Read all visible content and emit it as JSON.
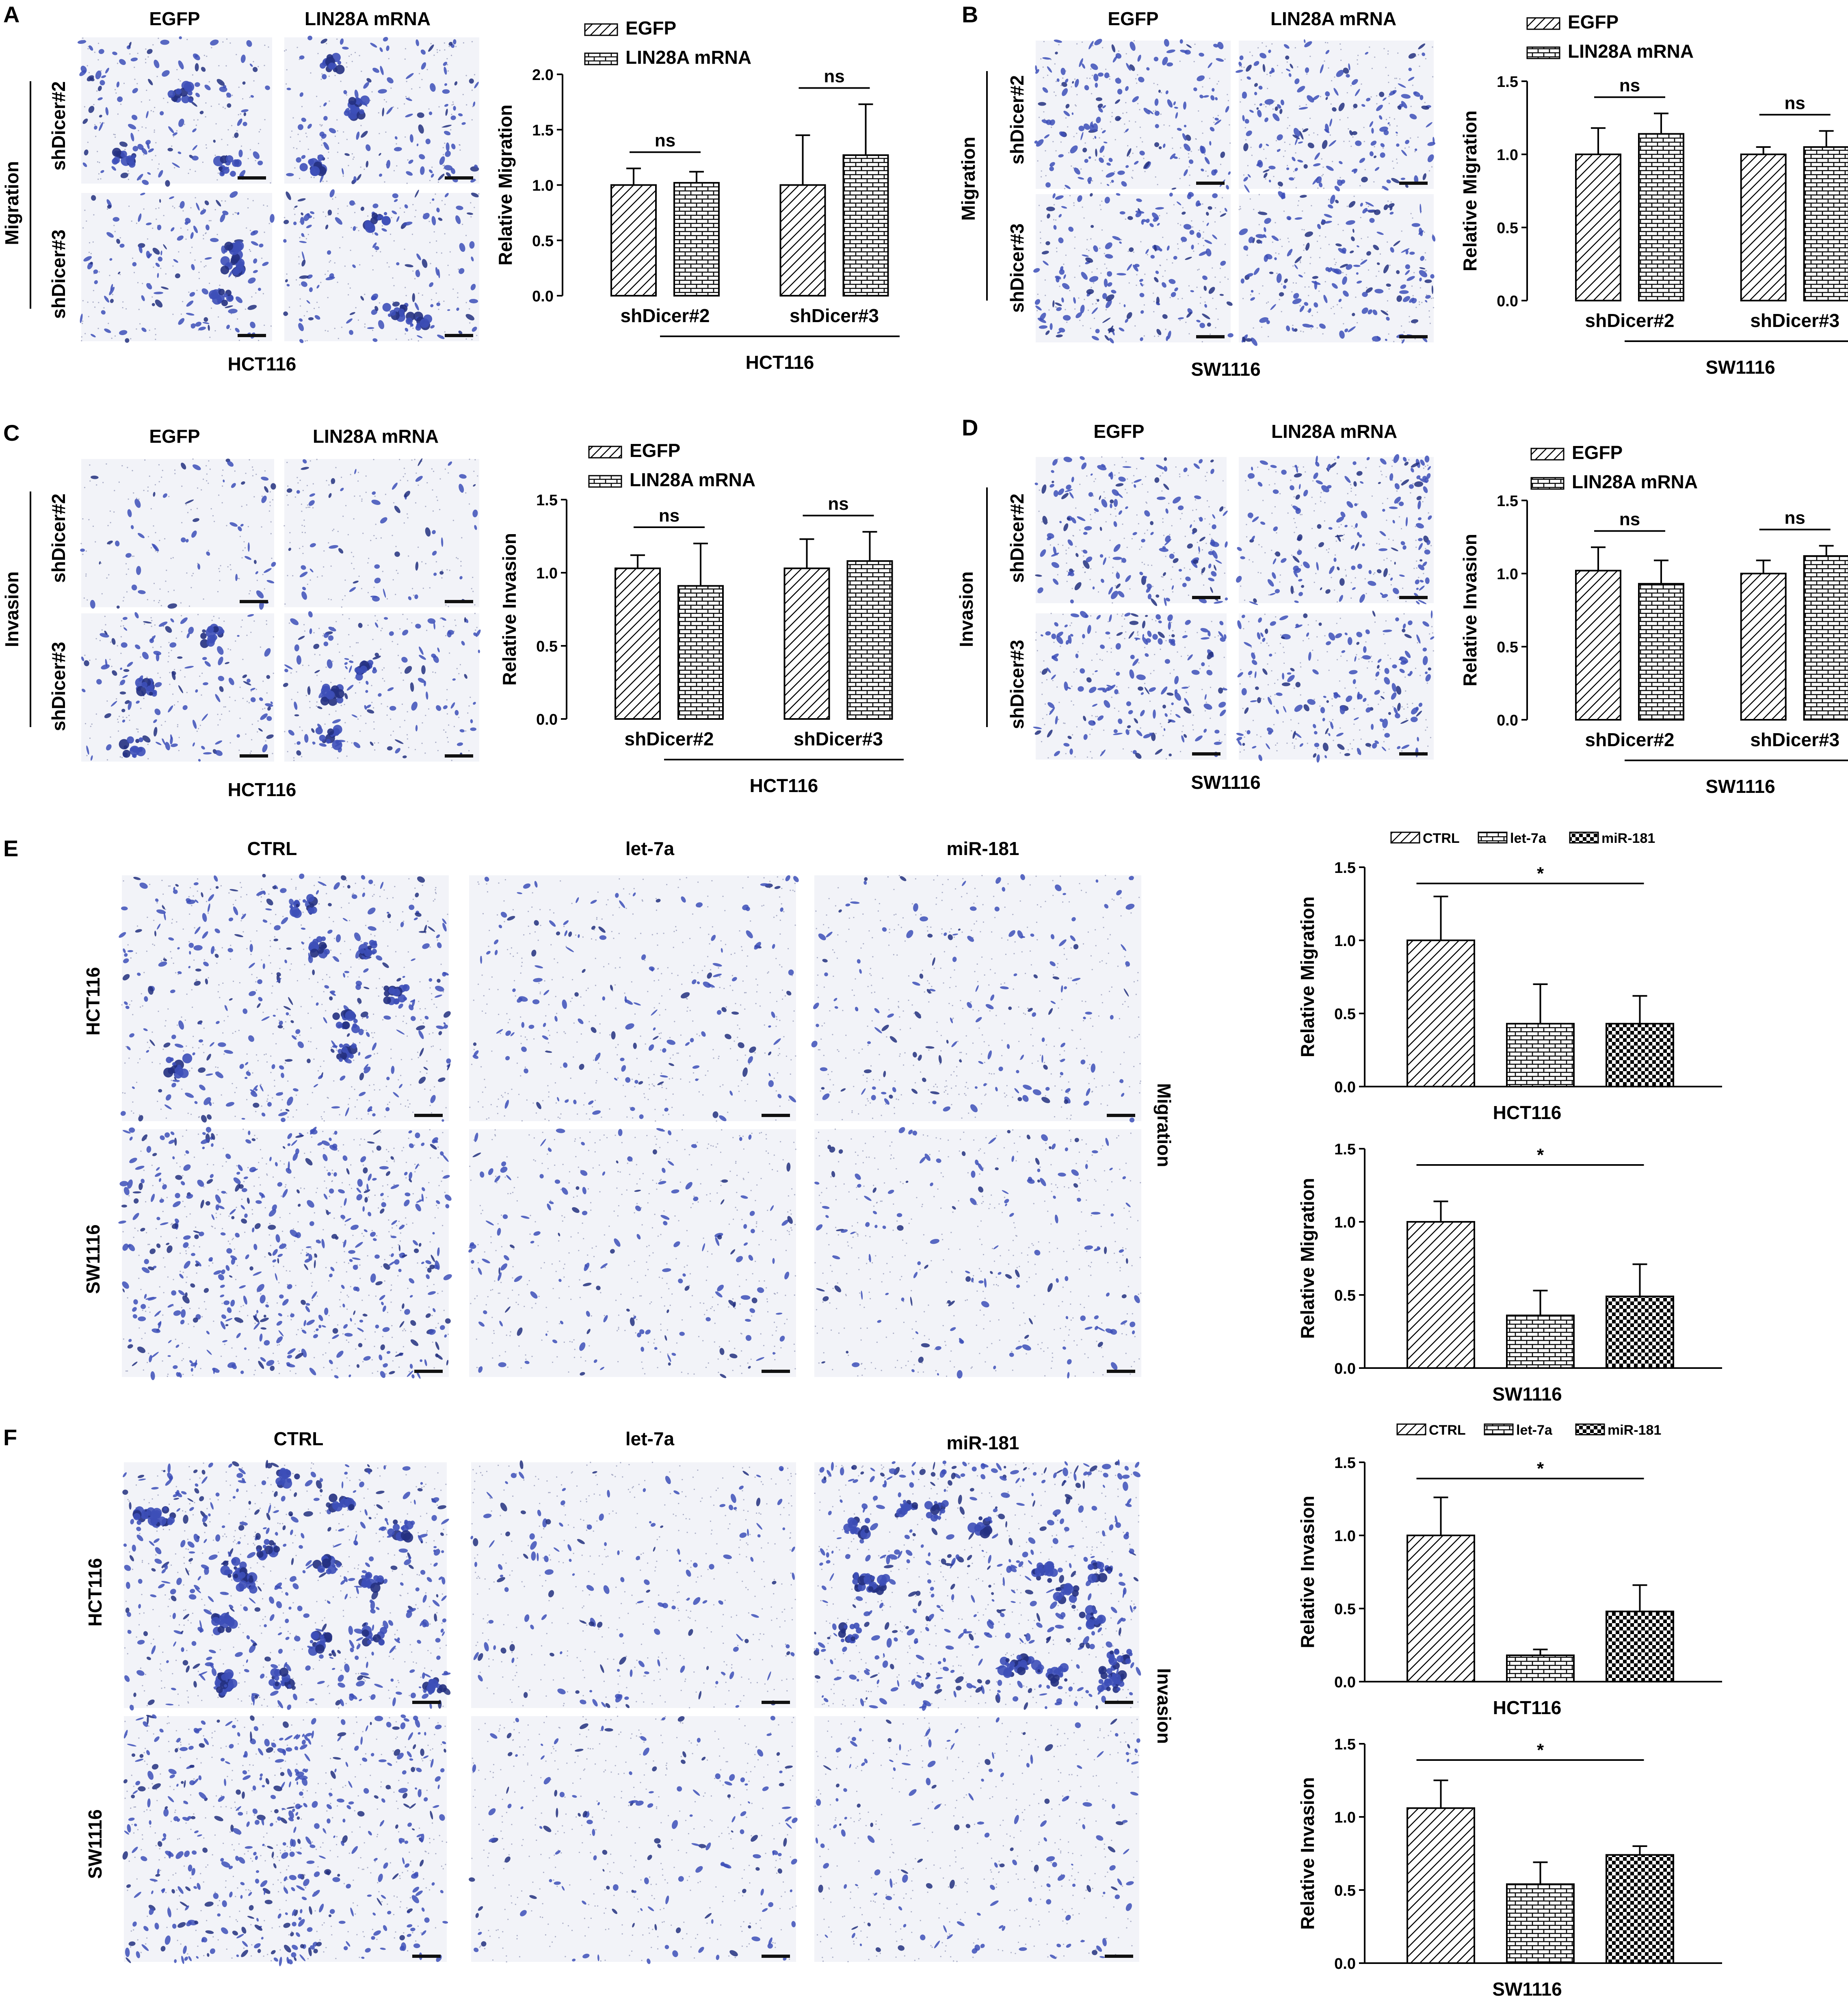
{
  "panels": {
    "A": {
      "letter": "A",
      "columns": [
        "EGFP",
        "LIN28A mRNA"
      ],
      "rows": [
        "shDicer#2",
        "shDicer#3"
      ],
      "assay": "Migration",
      "cell_line": "HCT116",
      "image_texture": "migration"
    },
    "B": {
      "letter": "B",
      "columns": [
        "EGFP",
        "LIN28A mRNA"
      ],
      "rows": [
        "shDicer#2",
        "shDicer#3"
      ],
      "assay": "Migration",
      "cell_line": "SW1116",
      "image_texture": "dense"
    },
    "C": {
      "letter": "C",
      "columns": [
        "EGFP",
        "LIN28A mRNA"
      ],
      "rows": [
        "shDicer#2",
        "shDicer#3"
      ],
      "assay": "Invasion",
      "cell_line": "HCT116",
      "image_texture": "sparse"
    },
    "D": {
      "letter": "D",
      "columns": [
        "EGFP",
        "LIN28A mRNA"
      ],
      "rows": [
        "shDicer#2",
        "shDicer#3"
      ],
      "assay": "Invasion",
      "cell_line": "SW1116",
      "image_texture": "dense"
    },
    "E": {
      "letter": "E",
      "columns": [
        "CTRL",
        "let-7a",
        "miR-181"
      ],
      "rows": [
        "HCT116",
        "SW1116"
      ],
      "assay": "Migration"
    },
    "F": {
      "letter": "F",
      "columns": [
        "CTRL",
        "let-7a",
        "miR-181"
      ],
      "rows": [
        "HCT116",
        "SW1116"
      ],
      "assay": "Invasion"
    }
  },
  "chart_data": [
    {
      "id": "A",
      "type": "bar",
      "categories": [
        "shDicer#2",
        "shDicer#3"
      ],
      "series": [
        {
          "name": "EGFP",
          "pattern": "hatch",
          "values": [
            1.0,
            1.0
          ],
          "errors": [
            0.15,
            0.45
          ]
        },
        {
          "name": "LIN28A mRNA",
          "pattern": "brick",
          "values": [
            1.02,
            1.27
          ],
          "errors": [
            0.1,
            0.46
          ]
        }
      ],
      "ylabel": "Relative Migration",
      "xgroup_label": "HCT116",
      "ylim": [
        0,
        2.0
      ],
      "yticks": [
        "0.0",
        "0.5",
        "1.0",
        "1.5",
        "2.0"
      ],
      "significance": [
        "ns",
        "ns"
      ],
      "legend": "top"
    },
    {
      "id": "B",
      "type": "bar",
      "categories": [
        "shDicer#2",
        "shDicer#3"
      ],
      "series": [
        {
          "name": "EGFP",
          "pattern": "hatch",
          "values": [
            1.0,
            1.0
          ],
          "errors": [
            0.18,
            0.05
          ]
        },
        {
          "name": "LIN28A mRNA",
          "pattern": "brick",
          "values": [
            1.14,
            1.05
          ],
          "errors": [
            0.14,
            0.11
          ]
        }
      ],
      "ylabel": "Relative Migration",
      "xgroup_label": "SW1116",
      "ylim": [
        0,
        1.5
      ],
      "yticks": [
        "0.0",
        "0.5",
        "1.0",
        "1.5"
      ],
      "significance": [
        "ns",
        "ns"
      ],
      "legend": "top"
    },
    {
      "id": "C",
      "type": "bar",
      "categories": [
        "shDicer#2",
        "shDicer#3"
      ],
      "series": [
        {
          "name": "EGFP",
          "pattern": "hatch",
          "values": [
            1.03,
            1.03
          ],
          "errors": [
            0.09,
            0.2
          ]
        },
        {
          "name": "LIN28A mRNA",
          "pattern": "brick",
          "values": [
            0.91,
            1.08
          ],
          "errors": [
            0.29,
            0.2
          ]
        }
      ],
      "ylabel": "Relative Invasion",
      "xgroup_label": "HCT116",
      "ylim": [
        0,
        1.5
      ],
      "yticks": [
        "0.0",
        "0.5",
        "1.0",
        "1.5"
      ],
      "significance": [
        "ns",
        "ns"
      ],
      "legend": "top"
    },
    {
      "id": "D",
      "type": "bar",
      "categories": [
        "shDicer#2",
        "shDicer#3"
      ],
      "series": [
        {
          "name": "EGFP",
          "pattern": "hatch",
          "values": [
            1.02,
            1.0
          ],
          "errors": [
            0.16,
            0.09
          ]
        },
        {
          "name": "LIN28A mRNA",
          "pattern": "brick",
          "values": [
            0.93,
            1.12
          ],
          "errors": [
            0.16,
            0.07
          ]
        }
      ],
      "ylabel": "Relative Invasion",
      "xgroup_label": "SW1116",
      "ylim": [
        0,
        1.5
      ],
      "yticks": [
        "0.0",
        "0.5",
        "1.0",
        "1.5"
      ],
      "significance": [
        "ns",
        "ns"
      ],
      "legend": "top"
    },
    {
      "id": "E1",
      "type": "bar",
      "categories": [
        "CTRL",
        "let-7a",
        "miR-181"
      ],
      "patterns": [
        "hatch",
        "brick",
        "checker"
      ],
      "values": [
        1.0,
        0.43,
        0.43
      ],
      "errors": [
        0.3,
        0.27,
        0.19
      ],
      "ylabel": "Relative Migration",
      "xlabel": "HCT116",
      "ylim": [
        0,
        1.5
      ],
      "yticks": [
        "0.0",
        "0.5",
        "1.0",
        "1.5"
      ],
      "significance": "*",
      "legend": [
        "CTRL",
        "let-7a",
        "miR-181"
      ]
    },
    {
      "id": "E2",
      "type": "bar",
      "categories": [
        "CTRL",
        "let-7a",
        "miR-181"
      ],
      "patterns": [
        "hatch",
        "brick",
        "checker"
      ],
      "values": [
        1.0,
        0.36,
        0.49
      ],
      "errors": [
        0.14,
        0.17,
        0.22
      ],
      "ylabel": "Relative Migration",
      "xlabel": "SW1116",
      "ylim": [
        0,
        1.5
      ],
      "yticks": [
        "0.0",
        "0.5",
        "1.0",
        "1.5"
      ],
      "significance": "*"
    },
    {
      "id": "F1",
      "type": "bar",
      "categories": [
        "CTRL",
        "let-7a",
        "miR-181"
      ],
      "patterns": [
        "hatch",
        "brick",
        "checker"
      ],
      "values": [
        1.0,
        0.18,
        0.48
      ],
      "errors": [
        0.26,
        0.04,
        0.18
      ],
      "ylabel": "Relative Invasion",
      "xlabel": "HCT116",
      "ylim": [
        0,
        1.5
      ],
      "yticks": [
        "0.0",
        "0.5",
        "1.0",
        "1.5"
      ],
      "significance": "*",
      "legend": [
        "CTRL",
        "let-7a",
        "miR-181"
      ]
    },
    {
      "id": "F2",
      "type": "bar",
      "categories": [
        "CTRL",
        "let-7a",
        "miR-181"
      ],
      "patterns": [
        "hatch",
        "brick",
        "checker"
      ],
      "values": [
        1.06,
        0.54,
        0.74
      ],
      "errors": [
        0.19,
        0.15,
        0.06
      ],
      "ylabel": "Relative Invasion",
      "xlabel": "SW1116",
      "ylim": [
        0,
        1.5
      ],
      "yticks": [
        "0.0",
        "0.5",
        "1.0",
        "1.5"
      ],
      "significance": "*"
    }
  ],
  "colors": {
    "stain": "#3d4fb8",
    "stain_dark": "#23307f",
    "background": "#ffffff",
    "micrograph_bg": "#f2f3f8"
  }
}
